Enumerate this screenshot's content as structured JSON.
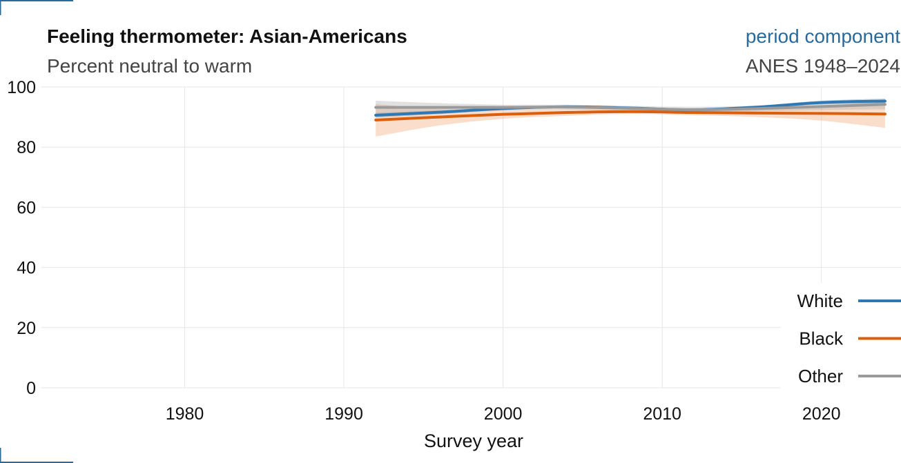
{
  "chart_data": {
    "type": "line",
    "title": "Feeling thermometer: Asian-Americans",
    "subtitle": "Percent neutral to warm",
    "tag": "period component",
    "source": "ANES 1948–2024",
    "xlabel": "Survey year",
    "ylabel": "",
    "xlim": [
      1971,
      2025
    ],
    "ylim": [
      0,
      100
    ],
    "x_ticks": [
      1980,
      1990,
      2000,
      2010,
      2020
    ],
    "y_ticks": [
      0,
      20,
      40,
      60,
      80,
      100
    ],
    "grid": true,
    "legend_position": "bottom-right",
    "colors": {
      "tag": "#2a6a9a",
      "grid": "#e6e6e6",
      "corner": "#2a6a9a"
    },
    "series": [
      {
        "name": "White",
        "color": "#2f78b4",
        "band_color": "#2f78b4",
        "x": [
          1992,
          1996,
          2000,
          2004,
          2008,
          2012,
          2016,
          2020,
          2024
        ],
        "y": [
          90.6,
          91.6,
          92.8,
          93.4,
          93.0,
          92.4,
          93.3,
          94.8,
          95.3
        ],
        "lower": [
          89.8,
          91.0,
          92.3,
          93.0,
          92.6,
          91.9,
          92.8,
          94.2,
          94.5
        ],
        "upper": [
          91.4,
          92.2,
          93.3,
          93.8,
          93.4,
          92.9,
          93.8,
          95.4,
          96.1
        ]
      },
      {
        "name": "Black",
        "color": "#d95f0e",
        "band_color": "#f0a06a",
        "x": [
          1992,
          1996,
          2000,
          2004,
          2008,
          2012,
          2016,
          2020,
          2024
        ],
        "y": [
          89.0,
          90.0,
          90.9,
          91.5,
          91.8,
          91.5,
          91.3,
          91.2,
          91.0
        ],
        "lower": [
          83.5,
          87.2,
          89.4,
          90.4,
          91.0,
          90.6,
          90.0,
          88.8,
          86.4
        ],
        "upper": [
          94.3,
          92.7,
          92.4,
          92.6,
          92.6,
          92.3,
          92.5,
          93.4,
          95.4
        ]
      },
      {
        "name": "Other",
        "color": "#9a9a9a",
        "band_color": "#a8a8a8",
        "x": [
          1992,
          1996,
          2000,
          2004,
          2008,
          2012,
          2016,
          2020,
          2024
        ],
        "y": [
          93.2,
          93.2,
          93.2,
          93.3,
          92.9,
          92.4,
          92.8,
          93.5,
          94.2
        ],
        "lower": [
          91.0,
          91.8,
          92.3,
          92.5,
          92.1,
          91.4,
          91.8,
          92.3,
          92.6
        ],
        "upper": [
          95.4,
          94.6,
          94.1,
          94.1,
          93.7,
          93.4,
          93.8,
          94.7,
          95.8
        ]
      }
    ]
  }
}
